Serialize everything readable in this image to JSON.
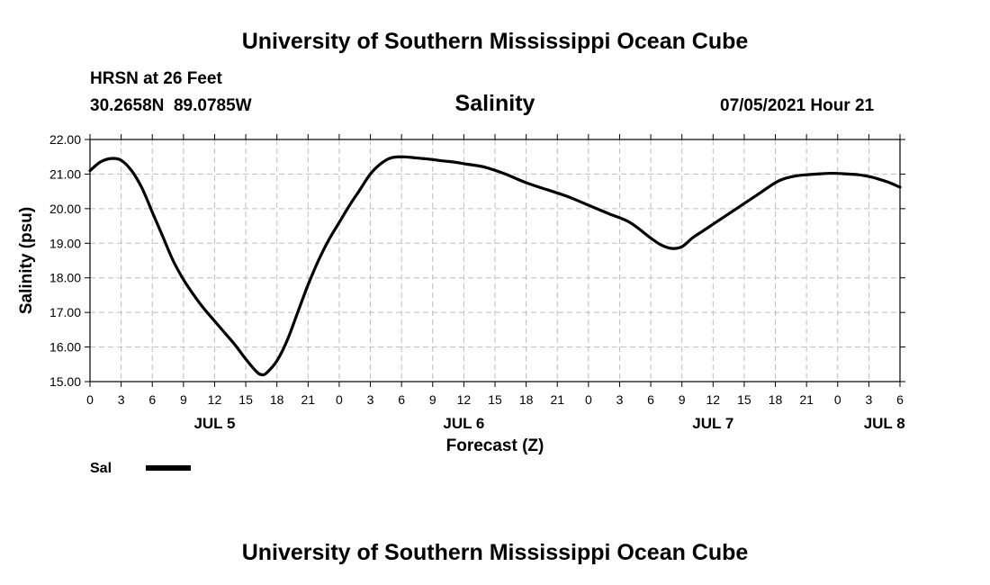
{
  "page": {
    "title_top": "University of Southern Mississippi Ocean Cube",
    "title_bottom": "University of Southern Mississippi Ocean Cube",
    "station": "HRSN at 26 Feet",
    "coords": "30.2658N  89.0785W",
    "chart_title": "Salinity",
    "timestamp": "07/05/2021 Hour 21",
    "legend_label": "Sal",
    "colors": {
      "line": "#000000",
      "grid": "#bdbdbd",
      "background": "#ffffff"
    }
  },
  "chart_data": {
    "type": "line",
    "title": "Salinity",
    "xlabel": "Forecast (Z)",
    "ylabel": "Salinity (psu)",
    "xlim": [
      0,
      78
    ],
    "ylim": [
      15.0,
      22.0
    ],
    "yticks": [
      "15.00",
      "16.00",
      "17.00",
      "18.00",
      "19.00",
      "20.00",
      "21.00",
      "22.00"
    ],
    "xtick_labels": [
      "0",
      "3",
      "6",
      "9",
      "12",
      "15",
      "18",
      "21",
      "0",
      "3",
      "6",
      "9",
      "12",
      "15",
      "18",
      "21",
      "0",
      "3",
      "6",
      "9",
      "12",
      "15",
      "18",
      "21",
      "0",
      "3",
      "6"
    ],
    "date_labels": [
      {
        "label": "JUL 5",
        "hour": 12
      },
      {
        "label": "JUL 6",
        "hour": 36
      },
      {
        "label": "JUL 7",
        "hour": 60
      },
      {
        "label": "JUL 8",
        "hour": 76.5
      }
    ],
    "grid": true,
    "legend": "bottom-left",
    "series": [
      {
        "name": "Sal",
        "x": [
          0,
          1,
          2,
          3,
          4,
          5,
          6,
          7,
          8,
          9,
          10,
          11,
          12,
          13,
          14,
          15,
          16,
          16.5,
          17,
          18,
          19,
          20,
          21,
          22,
          23,
          24,
          25,
          26,
          27,
          28,
          29,
          30,
          31,
          32,
          33,
          34,
          35,
          36,
          38,
          40,
          42,
          44,
          46,
          48,
          50,
          52,
          54,
          55,
          56,
          57,
          58,
          59,
          60,
          62,
          64,
          66,
          67,
          68,
          69,
          70,
          71,
          72,
          73,
          74,
          75,
          76,
          77,
          78
        ],
        "values": [
          21.1,
          21.35,
          21.45,
          21.4,
          21.1,
          20.6,
          19.9,
          19.2,
          18.5,
          17.95,
          17.5,
          17.1,
          16.75,
          16.4,
          16.05,
          15.65,
          15.3,
          15.2,
          15.25,
          15.6,
          16.2,
          17.0,
          17.8,
          18.5,
          19.1,
          19.6,
          20.1,
          20.55,
          21.0,
          21.3,
          21.47,
          21.5,
          21.48,
          21.45,
          21.42,
          21.38,
          21.35,
          21.3,
          21.2,
          21.0,
          20.75,
          20.55,
          20.35,
          20.1,
          19.85,
          19.6,
          19.15,
          18.95,
          18.85,
          18.9,
          19.15,
          19.35,
          19.55,
          19.95,
          20.35,
          20.75,
          20.88,
          20.95,
          20.98,
          21.0,
          21.02,
          21.02,
          21.0,
          20.98,
          20.93,
          20.85,
          20.75,
          20.62
        ]
      }
    ]
  }
}
